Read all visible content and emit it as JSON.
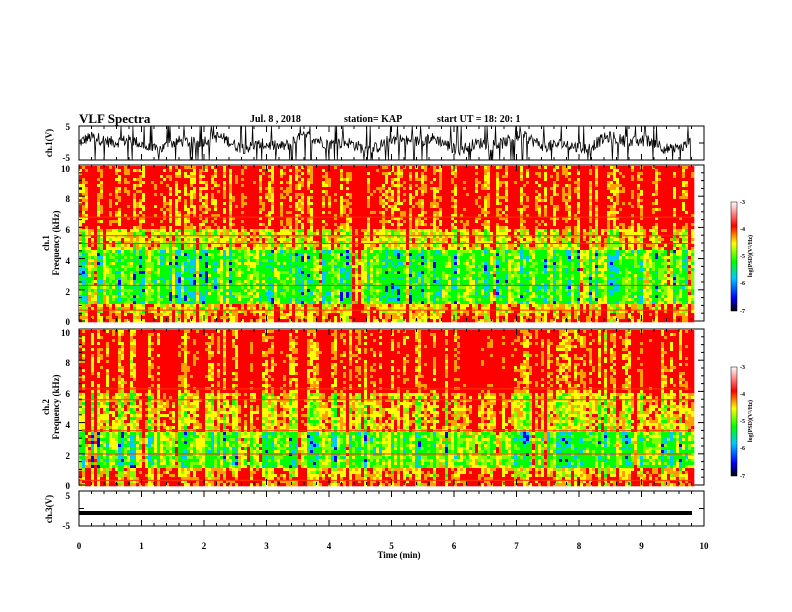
{
  "header": {
    "title": "VLF Spectra",
    "date": "Jul. 8 , 2018",
    "station": "station= KAP",
    "start_ut": "start UT = 18: 20: 1"
  },
  "chart_data": [
    {
      "type": "line",
      "panel": "ch1-waveform",
      "ylabel": "ch.1(V)",
      "ylim": [
        -5,
        5
      ],
      "y_ticks": [
        "5",
        "-5"
      ],
      "x_range_min": [
        0,
        10
      ],
      "data_end_min": 9.8
    },
    {
      "type": "heatmap",
      "panel": "ch1-spectrogram",
      "ylabel_channel": "ch.1",
      "ylabel": "Frequency (kHz)",
      "ylim": [
        0,
        10
      ],
      "y_ticks": [
        "0",
        "2",
        "4",
        "6",
        "8",
        "10"
      ],
      "colorbar": {
        "label": "log(PSD)(V²/Hz)",
        "range": [
          -7,
          -3
        ],
        "ticks": [
          "-3",
          "-4",
          "-5",
          "-6",
          "-7"
        ]
      }
    },
    {
      "type": "heatmap",
      "panel": "ch2-spectrogram",
      "ylabel_channel": "ch.2",
      "ylabel": "Frequency (kHz)",
      "ylim": [
        0,
        10
      ],
      "y_ticks": [
        "0",
        "2",
        "4",
        "6",
        "8",
        "10"
      ],
      "colorbar": {
        "label": "log(PSD)(V²/Hz)",
        "range": [
          -7,
          -3
        ],
        "ticks": [
          "-3",
          "-4",
          "-5",
          "-6",
          "-7"
        ]
      }
    },
    {
      "type": "line",
      "panel": "ch3-waveform",
      "ylabel": "ch.3(V)",
      "ylim": [
        -5,
        5
      ],
      "y_ticks": [
        "5",
        "-5"
      ],
      "values_constant_v": -1.3,
      "xlabel": "Time (min)",
      "x_ticks": [
        "0",
        "1",
        "2",
        "3",
        "4",
        "5",
        "6",
        "7",
        "8",
        "9",
        "10"
      ]
    }
  ],
  "colors": {
    "high": "#ff0000",
    "mid_high": "#ffdd00",
    "mid": "#00ff00",
    "low": "#0000ff",
    "lowest": "#000000"
  }
}
